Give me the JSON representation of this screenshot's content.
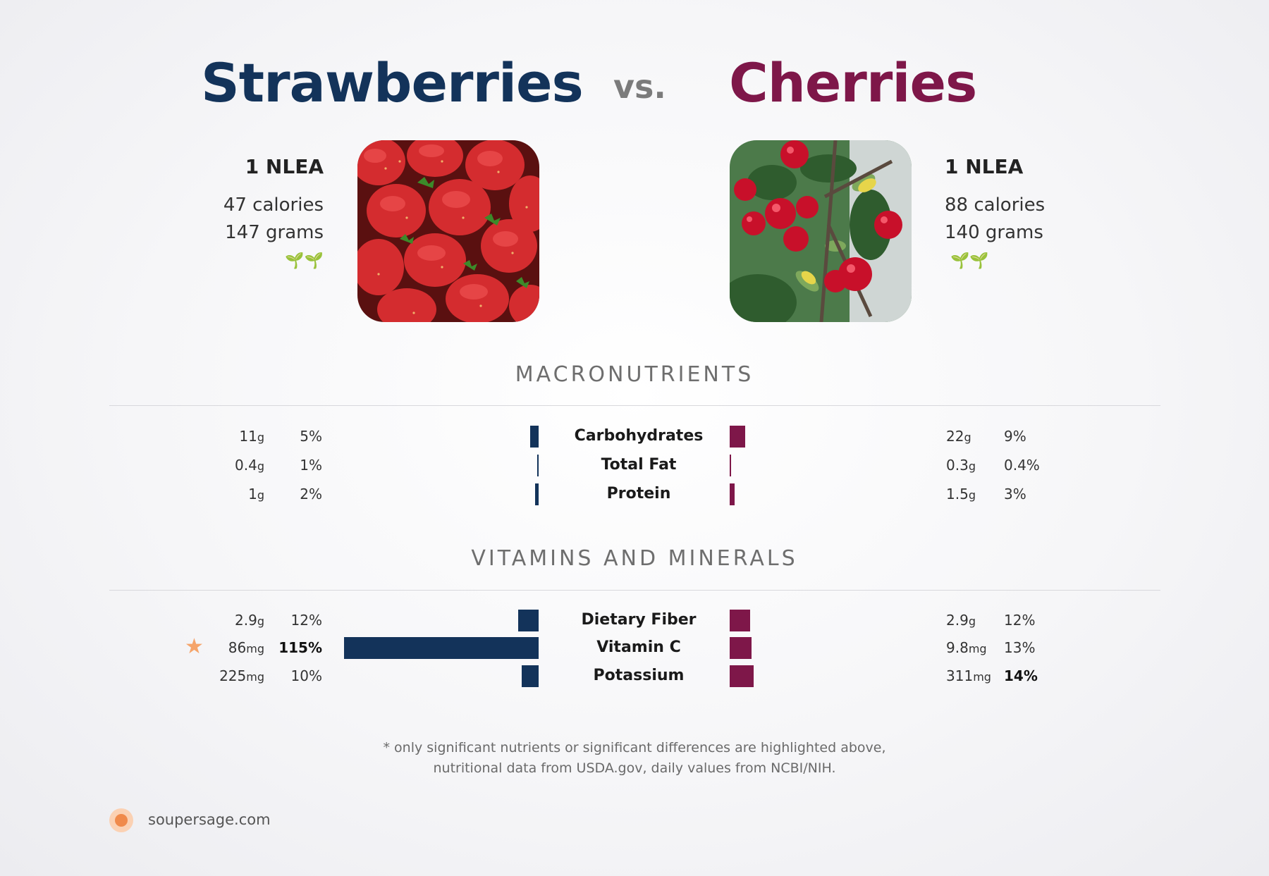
{
  "header": {
    "left_food": "Strawberries",
    "vs": "vs.",
    "right_food": "Cherries"
  },
  "left": {
    "serving": "1 NLEA",
    "calories": "47 calories",
    "grams": "147 grams",
    "leaf_icons": "🌱🌱",
    "color": "#13335a",
    "image": "strawberries-photo"
  },
  "right": {
    "serving": "1 NLEA",
    "calories": "88 calories",
    "grams": "140 grams",
    "leaf_icons": "🌱🌱",
    "color": "#7e1749",
    "image": "cherries-photo"
  },
  "macros": {
    "title": "MACRONUTRIENTS",
    "rows": [
      {
        "label": "Carbohydrates",
        "left_amount": "11",
        "left_unit": "g",
        "left_pct": "5%",
        "right_amount": "22",
        "right_unit": "g",
        "right_pct": "9%",
        "left_value": 5,
        "right_value": 9,
        "left_bold": false,
        "right_bold": false
      },
      {
        "label": "Total Fat",
        "left_amount": "0.4",
        "left_unit": "g",
        "left_pct": "1%",
        "right_amount": "0.3",
        "right_unit": "g",
        "right_pct": "0.4%",
        "left_value": 1,
        "right_value": 0.4,
        "left_bold": false,
        "right_bold": false
      },
      {
        "label": "Protein",
        "left_amount": "1",
        "left_unit": "g",
        "left_pct": "2%",
        "right_amount": "1.5",
        "right_unit": "g",
        "right_pct": "3%",
        "left_value": 2,
        "right_value": 3,
        "left_bold": false,
        "right_bold": false
      }
    ]
  },
  "vitamins": {
    "title": "VITAMINS AND MINERALS",
    "rows": [
      {
        "label": "Dietary Fiber",
        "left_amount": "2.9",
        "left_unit": "g",
        "left_pct": "12%",
        "right_amount": "2.9",
        "right_unit": "g",
        "right_pct": "12%",
        "left_value": 12,
        "right_value": 12,
        "left_bold": false,
        "right_bold": false,
        "star": false
      },
      {
        "label": "Vitamin C",
        "left_amount": "86",
        "left_unit": "mg",
        "left_pct": "115%",
        "right_amount": "9.8",
        "right_unit": "mg",
        "right_pct": "13%",
        "left_value": 115,
        "right_value": 13,
        "left_bold": true,
        "right_bold": false,
        "star": true
      },
      {
        "label": "Potassium",
        "left_amount": "225",
        "left_unit": "mg",
        "left_pct": "10%",
        "right_amount": "311",
        "right_unit": "mg",
        "right_pct": "14%",
        "left_value": 10,
        "right_value": 14,
        "left_bold": false,
        "right_bold": true,
        "star": false
      }
    ]
  },
  "footnote": {
    "line1": "* only significant nutrients or significant differences are highlighted above,",
    "line2": "nutritional data from USDA.gov, daily values from NCBI/NIH."
  },
  "footer": {
    "site": "soupersage.com",
    "logo": "soupersage-logo-icon"
  },
  "star_icon": "★"
}
